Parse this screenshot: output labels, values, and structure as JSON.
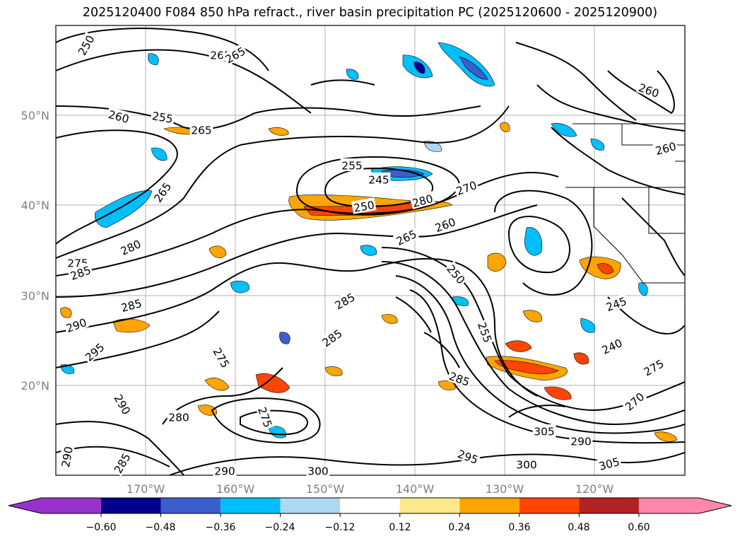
{
  "title": "2025120400 F084 850 hPa refract., river basin precipitation PC (2025120600 - 2025120900)",
  "map": {
    "lat_labels": [
      "50°N",
      "40°N",
      "30°N",
      "20°N"
    ],
    "lon_labels": [
      "170°W",
      "160°W",
      "150°W",
      "140°W",
      "130°W",
      "120°W"
    ],
    "grid": true,
    "contour_color": "#000000"
  },
  "contour_labels": [
    "250",
    "265",
    "265",
    "260",
    "260",
    "255",
    "265",
    "255",
    "245",
    "250",
    "280",
    "260",
    "270",
    "265",
    "260",
    "265",
    "280",
    "275",
    "285",
    "285",
    "290",
    "295",
    "250",
    "285",
    "285",
    "275",
    "245",
    "240",
    "255",
    "285",
    "270",
    "290",
    "280",
    "275",
    "285",
    "290",
    "290",
    "295",
    "290",
    "300",
    "300",
    "305",
    "305",
    "275"
  ],
  "colorbar": {
    "tick_labels": [
      "−0.60",
      "−0.48",
      "−0.36",
      "−0.24",
      "−0.12",
      "0.12",
      "0.24",
      "0.36",
      "0.48",
      "0.60"
    ],
    "colors": [
      "#9932CC",
      "#00008B",
      "#3A5FCD",
      "#00BFFF",
      "#ADD8F5",
      "#FFFFFF",
      "#FFE98C",
      "#FFA500",
      "#FF4500",
      "#B22222",
      "#FF88AA"
    ]
  }
}
